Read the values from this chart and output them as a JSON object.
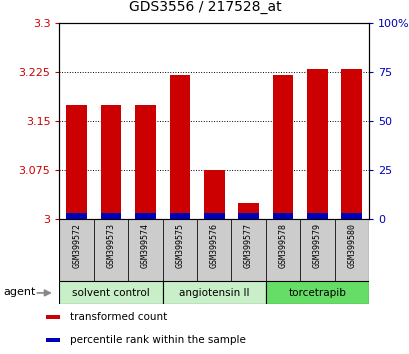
{
  "title": "GDS3556 / 217528_at",
  "samples": [
    "GSM399572",
    "GSM399573",
    "GSM399574",
    "GSM399575",
    "GSM399576",
    "GSM399577",
    "GSM399578",
    "GSM399579",
    "GSM399580"
  ],
  "transformed_count": [
    3.175,
    3.175,
    3.175,
    3.22,
    3.075,
    3.025,
    3.22,
    3.23,
    3.23
  ],
  "blue_bar_height": 0.01,
  "ymin": 3.0,
  "ymax": 3.3,
  "yticks": [
    3.0,
    3.075,
    3.15,
    3.225,
    3.3
  ],
  "ytick_labels": [
    "3",
    "3.075",
    "3.15",
    "3.225",
    "3.3"
  ],
  "right_yticks": [
    0,
    25,
    50,
    75,
    100
  ],
  "right_yticklabels": [
    "0",
    "25",
    "50",
    "75",
    "100%"
  ],
  "bar_color_red": "#cc0000",
  "bar_color_blue": "#0000bb",
  "bar_width": 0.6,
  "groups": [
    {
      "label": "solvent control",
      "indices": [
        0,
        1,
        2
      ],
      "color": "#c8efc8"
    },
    {
      "label": "angiotensin II",
      "indices": [
        3,
        4,
        5
      ],
      "color": "#c8efc8"
    },
    {
      "label": "torcetrapib",
      "indices": [
        6,
        7,
        8
      ],
      "color": "#66dd66"
    }
  ],
  "agent_label": "agent",
  "legend_items": [
    {
      "label": "transformed count",
      "color": "#cc0000"
    },
    {
      "label": "percentile rank within the sample",
      "color": "#0000bb"
    }
  ],
  "left_tick_color": "#cc0000",
  "right_tick_color": "#0000bb",
  "sample_bg_color": "#cccccc",
  "background_color": "#ffffff",
  "title_fontsize": 10
}
